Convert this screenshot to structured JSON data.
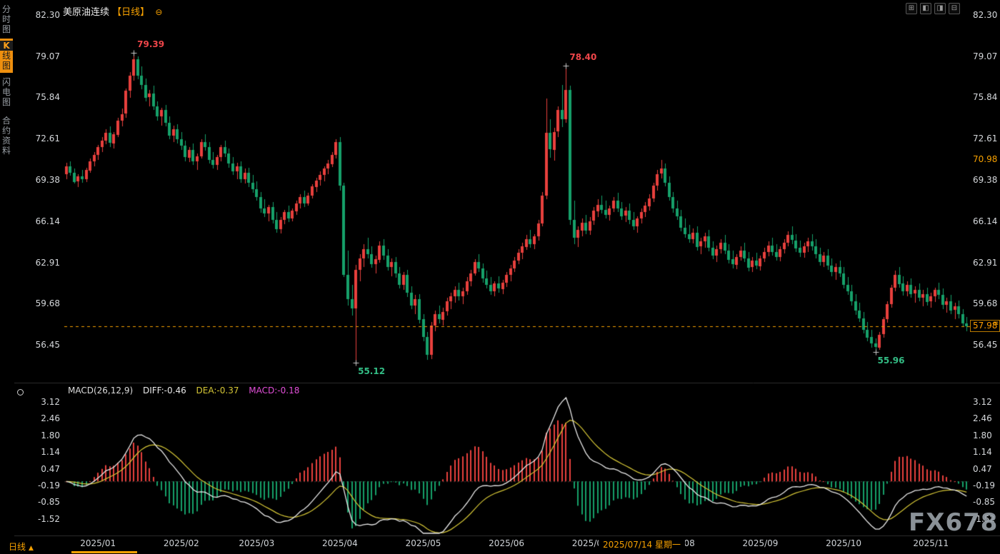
{
  "window": {
    "title": "美原油连续",
    "timeframe_tag": "【日线】",
    "settings_glyph": "⊖",
    "toolbar_icons": [
      {
        "name": "layout-grid-icon",
        "glyph": "⊞"
      },
      {
        "name": "layout-left-icon",
        "glyph": "◧"
      },
      {
        "name": "layout-right-icon",
        "glyph": "◨"
      },
      {
        "name": "layout-stack-icon",
        "glyph": "⊟"
      }
    ]
  },
  "sidebar": {
    "tabs": [
      {
        "label": "分时图",
        "active": false
      },
      {
        "label": "K线图",
        "active": true
      },
      {
        "label": "闪电图",
        "active": false
      },
      {
        "label": "合约资料",
        "active": false
      }
    ]
  },
  "indicator_panel": {
    "name_label": "MACD(26,12,9)",
    "diff_label": "DIFF:-0.46",
    "dea_label": "DEA:-0.37",
    "macd_label": "MACD:-0.18"
  },
  "bottom_bar": {
    "timeframe_label": "日线",
    "arrow": "▲"
  },
  "watermark": "FX678",
  "icons": {
    "price_tag": "≡"
  },
  "colors": {
    "up": "#e8403d",
    "down": "#16a06a",
    "accent": "#f7a100",
    "diff_line": "#e9e9e9",
    "dea_line": "#d5c636",
    "macd_text": "#e24fd8",
    "axis_text": "#d5d8db"
  },
  "chart_data": {
    "type": "candlestick",
    "symbol": "美原油连续",
    "period": "日线",
    "y_ticks": [
      82.3,
      79.07,
      75.84,
      72.61,
      69.38,
      66.14,
      62.91,
      59.68,
      56.45
    ],
    "current_price": 57.98,
    "current_price_label": "57.98",
    "crosshair": {
      "date": "2025/07/14 星期一",
      "price": 70.98,
      "price_label": "70.98",
      "index": 137
    },
    "months": [
      {
        "label": "2025/01",
        "index": 8
      },
      {
        "label": "2025/02",
        "index": 29
      },
      {
        "label": "2025/03",
        "index": 48
      },
      {
        "label": "2025/04",
        "index": 69
      },
      {
        "label": "2025/05",
        "index": 90
      },
      {
        "label": "2025/06",
        "index": 111
      },
      {
        "label": "2025/07",
        "index": 132
      },
      {
        "label": "2025/08",
        "index": 154
      },
      {
        "label": "2025/09",
        "index": 175
      },
      {
        "label": "2025/10",
        "index": 196
      },
      {
        "label": "2025/11",
        "index": 218
      }
    ],
    "annotations": [
      {
        "text": "79.39",
        "price": 79.39,
        "index": 17,
        "placement": "above",
        "color": "#f0464a"
      },
      {
        "text": "78.40",
        "price": 78.4,
        "index": 126,
        "placement": "above",
        "color": "#f0464a"
      },
      {
        "text": "55.12",
        "price": 55.12,
        "index": 73,
        "placement": "below",
        "color": "#33bd85"
      },
      {
        "text": "55.96",
        "price": 55.96,
        "index": 204,
        "placement": "below",
        "color": "#33bd85"
      }
    ],
    "macd": {
      "params": [
        26,
        12,
        9
      ],
      "diff": -0.46,
      "dea": -0.37,
      "macd": -0.18,
      "y_ticks": [
        3.12,
        2.46,
        1.8,
        1.14,
        0.47,
        -0.19,
        -0.85,
        -1.52
      ]
    },
    "candles": [
      [
        69.9,
        70.8,
        69.5,
        70.5
      ],
      [
        70.5,
        70.9,
        69.8,
        70.0
      ],
      [
        70.0,
        70.3,
        69.1,
        69.3
      ],
      [
        69.3,
        69.9,
        68.9,
        69.7
      ],
      [
        69.7,
        70.2,
        69.2,
        69.5
      ],
      [
        69.5,
        70.4,
        69.3,
        70.2
      ],
      [
        70.2,
        71.1,
        70.0,
        70.9
      ],
      [
        70.9,
        71.6,
        70.5,
        71.4
      ],
      [
        71.4,
        72.2,
        71.0,
        72.0
      ],
      [
        72.0,
        72.8,
        71.6,
        72.5
      ],
      [
        72.5,
        73.4,
        72.2,
        73.1
      ],
      [
        73.1,
        73.6,
        72.0,
        72.3
      ],
      [
        72.3,
        73.2,
        71.9,
        73.0
      ],
      [
        73.0,
        74.3,
        72.8,
        74.1
      ],
      [
        74.1,
        75.0,
        73.6,
        74.6
      ],
      [
        74.6,
        76.6,
        74.3,
        76.4
      ],
      [
        76.4,
        77.9,
        75.9,
        77.6
      ],
      [
        77.6,
        79.39,
        77.2,
        78.9
      ],
      [
        78.9,
        79.1,
        77.3,
        77.6
      ],
      [
        77.6,
        78.3,
        76.5,
        76.9
      ],
      [
        76.9,
        77.4,
        75.6,
        75.9
      ],
      [
        75.9,
        76.5,
        75.2,
        76.2
      ],
      [
        76.2,
        76.8,
        74.9,
        75.2
      ],
      [
        75.2,
        75.6,
        74.1,
        74.4
      ],
      [
        74.4,
        75.1,
        73.7,
        74.9
      ],
      [
        74.9,
        75.3,
        73.6,
        73.9
      ],
      [
        73.9,
        74.4,
        72.6,
        72.9
      ],
      [
        72.9,
        73.7,
        72.4,
        73.4
      ],
      [
        73.4,
        73.8,
        72.3,
        72.6
      ],
      [
        72.6,
        73.2,
        71.8,
        72.1
      ],
      [
        72.1,
        72.5,
        70.9,
        71.2
      ],
      [
        71.2,
        72.0,
        70.8,
        71.8
      ],
      [
        71.8,
        72.3,
        70.6,
        70.9
      ],
      [
        70.9,
        71.5,
        70.2,
        71.3
      ],
      [
        71.3,
        72.6,
        71.1,
        72.4
      ],
      [
        72.4,
        73.0,
        71.7,
        72.0
      ],
      [
        72.0,
        72.4,
        70.7,
        71.0
      ],
      [
        71.0,
        71.6,
        70.3,
        70.6
      ],
      [
        70.6,
        71.4,
        70.2,
        71.2
      ],
      [
        71.2,
        72.2,
        70.9,
        72.0
      ],
      [
        72.0,
        72.5,
        71.2,
        71.5
      ],
      [
        71.5,
        71.9,
        70.4,
        70.7
      ],
      [
        70.7,
        71.2,
        69.8,
        70.1
      ],
      [
        70.1,
        70.8,
        69.5,
        70.5
      ],
      [
        70.5,
        70.9,
        69.2,
        69.5
      ],
      [
        69.5,
        70.3,
        69.1,
        70.0
      ],
      [
        70.0,
        70.4,
        68.9,
        69.2
      ],
      [
        69.2,
        69.8,
        68.4,
        68.7
      ],
      [
        68.7,
        69.3,
        67.8,
        68.1
      ],
      [
        68.1,
        68.5,
        66.9,
        67.2
      ],
      [
        67.2,
        67.9,
        66.5,
        66.8
      ],
      [
        66.8,
        67.5,
        66.2,
        67.3
      ],
      [
        67.3,
        67.7,
        66.0,
        66.3
      ],
      [
        66.3,
        66.9,
        65.3,
        65.6
      ],
      [
        65.6,
        66.5,
        65.2,
        66.3
      ],
      [
        66.3,
        67.1,
        66.0,
        66.9
      ],
      [
        66.9,
        67.4,
        66.1,
        66.4
      ],
      [
        66.4,
        67.2,
        66.2,
        67.0
      ],
      [
        67.0,
        67.8,
        66.7,
        67.6
      ],
      [
        67.6,
        68.3,
        67.2,
        68.1
      ],
      [
        68.1,
        68.6,
        67.3,
        67.6
      ],
      [
        67.6,
        68.4,
        67.4,
        68.2
      ],
      [
        68.2,
        69.1,
        68.0,
        68.9
      ],
      [
        68.9,
        69.6,
        68.5,
        69.4
      ],
      [
        69.4,
        70.1,
        69.0,
        69.8
      ],
      [
        69.8,
        70.5,
        69.3,
        70.3
      ],
      [
        70.3,
        71.0,
        69.9,
        70.7
      ],
      [
        70.7,
        71.6,
        70.4,
        71.4
      ],
      [
        71.4,
        72.6,
        71.1,
        72.4
      ],
      [
        72.4,
        72.8,
        68.6,
        69.0
      ],
      [
        69.0,
        69.2,
        61.8,
        62.0
      ],
      [
        62.0,
        63.9,
        59.6,
        60.1
      ],
      [
        60.1,
        61.2,
        58.8,
        59.4
      ],
      [
        59.4,
        62.8,
        55.12,
        62.4
      ],
      [
        62.4,
        63.6,
        61.5,
        63.3
      ],
      [
        63.3,
        64.4,
        62.6,
        64.0
      ],
      [
        64.0,
        64.9,
        63.3,
        63.6
      ],
      [
        63.6,
        64.2,
        62.5,
        62.8
      ],
      [
        62.8,
        63.5,
        62.1,
        63.2
      ],
      [
        63.2,
        64.6,
        62.9,
        64.3
      ],
      [
        64.3,
        64.8,
        63.2,
        63.5
      ],
      [
        63.5,
        64.0,
        62.3,
        62.6
      ],
      [
        62.6,
        63.3,
        61.9,
        63.0
      ],
      [
        63.0,
        63.4,
        61.8,
        62.1
      ],
      [
        62.1,
        62.6,
        60.9,
        61.2
      ],
      [
        61.2,
        62.2,
        60.8,
        62.0
      ],
      [
        62.0,
        62.4,
        60.3,
        60.6
      ],
      [
        60.6,
        61.1,
        59.3,
        59.6
      ],
      [
        59.6,
        60.4,
        58.9,
        60.1
      ],
      [
        60.1,
        60.5,
        58.2,
        58.5
      ],
      [
        58.5,
        58.9,
        56.8,
        57.1
      ],
      [
        57.1,
        57.5,
        55.3,
        55.7
      ],
      [
        55.7,
        58.3,
        55.4,
        58.0
      ],
      [
        58.0,
        59.2,
        57.6,
        58.9
      ],
      [
        58.9,
        59.6,
        58.2,
        58.5
      ],
      [
        58.5,
        59.4,
        58.0,
        59.1
      ],
      [
        59.1,
        60.2,
        58.8,
        59.9
      ],
      [
        59.9,
        60.6,
        59.3,
        60.3
      ],
      [
        60.3,
        61.1,
        59.8,
        60.8
      ],
      [
        60.8,
        61.4,
        60.0,
        60.3
      ],
      [
        60.3,
        61.0,
        59.7,
        60.7
      ],
      [
        60.7,
        61.8,
        60.4,
        61.5
      ],
      [
        61.5,
        62.4,
        61.1,
        62.1
      ],
      [
        62.1,
        63.2,
        61.9,
        63.0
      ],
      [
        63.0,
        63.6,
        62.2,
        62.5
      ],
      [
        62.5,
        62.9,
        61.4,
        61.7
      ],
      [
        61.7,
        62.3,
        60.9,
        61.2
      ],
      [
        61.2,
        61.8,
        60.4,
        60.7
      ],
      [
        60.7,
        61.5,
        60.3,
        61.3
      ],
      [
        61.3,
        61.9,
        60.6,
        60.9
      ],
      [
        60.9,
        61.6,
        60.5,
        61.4
      ],
      [
        61.4,
        62.2,
        61.0,
        62.0
      ],
      [
        62.0,
        62.8,
        61.5,
        62.5
      ],
      [
        62.5,
        63.4,
        62.2,
        63.1
      ],
      [
        63.1,
        64.0,
        62.8,
        63.7
      ],
      [
        63.7,
        64.5,
        63.2,
        64.2
      ],
      [
        64.2,
        65.1,
        63.9,
        64.8
      ],
      [
        64.8,
        65.5,
        64.1,
        64.4
      ],
      [
        64.4,
        65.2,
        64.0,
        65.0
      ],
      [
        65.0,
        66.3,
        64.7,
        66.0
      ],
      [
        66.0,
        68.5,
        65.8,
        68.2
      ],
      [
        68.2,
        75.8,
        67.9,
        73.1
      ],
      [
        73.1,
        74.2,
        71.2,
        71.8
      ],
      [
        71.8,
        73.5,
        70.9,
        73.2
      ],
      [
        73.2,
        75.2,
        72.8,
        74.9
      ],
      [
        74.9,
        76.9,
        73.6,
        74.2
      ],
      [
        74.2,
        78.4,
        73.9,
        76.5
      ],
      [
        76.5,
        76.8,
        65.9,
        66.3
      ],
      [
        66.3,
        67.8,
        64.4,
        64.9
      ],
      [
        64.9,
        65.8,
        64.2,
        65.5
      ],
      [
        65.5,
        66.4,
        65.0,
        66.1
      ],
      [
        66.1,
        66.7,
        65.2,
        65.5
      ],
      [
        65.5,
        66.5,
        65.1,
        66.2
      ],
      [
        66.2,
        67.3,
        65.9,
        67.0
      ],
      [
        67.0,
        67.9,
        66.5,
        67.5
      ],
      [
        67.5,
        68.2,
        66.8,
        67.1
      ],
      [
        67.1,
        67.8,
        66.4,
        66.7
      ],
      [
        66.7,
        67.4,
        66.2,
        67.2
      ],
      [
        67.2,
        68.1,
        66.9,
        67.8
      ],
      [
        67.8,
        68.4,
        66.9,
        67.2
      ],
      [
        67.2,
        67.7,
        66.3,
        66.6
      ],
      [
        66.6,
        67.3,
        66.1,
        67.0
      ],
      [
        67.0,
        67.6,
        66.0,
        66.3
      ],
      [
        66.3,
        66.9,
        65.5,
        65.8
      ],
      [
        65.8,
        66.6,
        65.3,
        66.4
      ],
      [
        66.4,
        67.2,
        66.0,
        66.9
      ],
      [
        66.9,
        67.7,
        66.5,
        67.4
      ],
      [
        67.4,
        68.3,
        67.0,
        68.0
      ],
      [
        68.0,
        69.2,
        67.7,
        69.0
      ],
      [
        69.0,
        70.2,
        68.6,
        69.9
      ],
      [
        69.9,
        70.98,
        69.5,
        70.3
      ],
      [
        70.3,
        70.7,
        68.9,
        69.2
      ],
      [
        69.2,
        69.7,
        67.8,
        68.1
      ],
      [
        68.1,
        68.5,
        66.9,
        67.2
      ],
      [
        67.2,
        67.8,
        66.3,
        66.6
      ],
      [
        66.6,
        67.1,
        65.4,
        65.7
      ],
      [
        65.7,
        66.4,
        64.9,
        65.2
      ],
      [
        65.2,
        65.9,
        64.5,
        64.8
      ],
      [
        64.8,
        65.6,
        64.4,
        65.3
      ],
      [
        65.3,
        65.8,
        63.9,
        64.2
      ],
      [
        64.2,
        64.9,
        63.6,
        64.6
      ],
      [
        64.6,
        65.3,
        64.1,
        65.0
      ],
      [
        65.0,
        65.5,
        63.8,
        64.1
      ],
      [
        64.1,
        64.6,
        63.2,
        63.5
      ],
      [
        63.5,
        64.3,
        63.0,
        64.0
      ],
      [
        64.0,
        64.8,
        63.7,
        64.5
      ],
      [
        64.5,
        65.1,
        63.6,
        63.9
      ],
      [
        63.9,
        64.4,
        62.9,
        63.2
      ],
      [
        63.2,
        63.9,
        62.5,
        62.8
      ],
      [
        62.8,
        63.6,
        62.4,
        63.4
      ],
      [
        63.4,
        64.2,
        63.1,
        63.9
      ],
      [
        63.9,
        64.5,
        63.0,
        63.3
      ],
      [
        63.3,
        63.8,
        62.3,
        62.6
      ],
      [
        62.6,
        63.4,
        62.2,
        63.1
      ],
      [
        63.1,
        63.7,
        62.4,
        62.7
      ],
      [
        62.7,
        63.5,
        62.3,
        63.3
      ],
      [
        63.3,
        64.1,
        63.0,
        63.8
      ],
      [
        63.8,
        64.6,
        63.4,
        64.3
      ],
      [
        64.3,
        64.9,
        63.5,
        63.8
      ],
      [
        63.8,
        64.4,
        63.1,
        63.4
      ],
      [
        63.4,
        64.2,
        63.0,
        64.0
      ],
      [
        64.0,
        64.8,
        63.7,
        64.5
      ],
      [
        64.5,
        65.4,
        64.2,
        65.1
      ],
      [
        65.1,
        65.8,
        64.4,
        64.7
      ],
      [
        64.7,
        65.2,
        63.8,
        64.1
      ],
      [
        64.1,
        64.7,
        63.4,
        63.7
      ],
      [
        63.7,
        64.5,
        63.3,
        64.2
      ],
      [
        64.2,
        64.9,
        63.8,
        64.6
      ],
      [
        64.6,
        65.2,
        63.9,
        64.2
      ],
      [
        64.2,
        64.8,
        63.3,
        63.6
      ],
      [
        63.6,
        64.1,
        62.7,
        63.0
      ],
      [
        63.0,
        63.8,
        62.6,
        63.5
      ],
      [
        63.5,
        64.0,
        62.4,
        62.7
      ],
      [
        62.7,
        63.3,
        61.9,
        62.2
      ],
      [
        62.2,
        62.9,
        61.6,
        62.6
      ],
      [
        62.6,
        63.1,
        61.8,
        62.1
      ],
      [
        62.1,
        62.6,
        60.9,
        61.2
      ],
      [
        61.2,
        61.8,
        60.4,
        60.7
      ],
      [
        60.7,
        61.2,
        59.6,
        59.9
      ],
      [
        59.9,
        60.5,
        58.9,
        59.2
      ],
      [
        59.2,
        59.8,
        58.3,
        58.6
      ],
      [
        58.6,
        59.1,
        57.4,
        57.7
      ],
      [
        57.7,
        58.3,
        56.8,
        57.1
      ],
      [
        57.1,
        57.7,
        56.3,
        56.6
      ],
      [
        56.6,
        57.0,
        55.96,
        56.3
      ],
      [
        56.3,
        57.5,
        56.1,
        57.3
      ],
      [
        57.3,
        58.7,
        57.1,
        58.5
      ],
      [
        58.5,
        59.9,
        58.2,
        59.7
      ],
      [
        59.7,
        61.2,
        59.4,
        61.0
      ],
      [
        61.0,
        62.3,
        60.7,
        62.0
      ],
      [
        62.0,
        62.6,
        61.0,
        61.3
      ],
      [
        61.3,
        61.9,
        60.4,
        60.7
      ],
      [
        60.7,
        61.5,
        60.3,
        61.2
      ],
      [
        61.2,
        61.7,
        60.2,
        60.5
      ],
      [
        60.5,
        61.1,
        59.8,
        60.8
      ],
      [
        60.8,
        61.3,
        59.9,
        60.2
      ],
      [
        60.2,
        60.8,
        59.5,
        60.5
      ],
      [
        60.5,
        61.0,
        59.6,
        59.9
      ],
      [
        59.9,
        60.6,
        59.4,
        60.3
      ],
      [
        60.3,
        61.0,
        59.9,
        60.8
      ],
      [
        60.8,
        61.4,
        60.1,
        60.4
      ],
      [
        60.4,
        60.9,
        59.3,
        59.6
      ],
      [
        59.6,
        60.2,
        59.0,
        59.9
      ],
      [
        59.9,
        60.4,
        58.9,
        59.2
      ],
      [
        59.2,
        59.8,
        58.5,
        59.5
      ],
      [
        59.5,
        60.0,
        58.6,
        58.9
      ],
      [
        58.9,
        59.3,
        57.9,
        58.2
      ],
      [
        58.2,
        58.7,
        57.6,
        57.98
      ]
    ]
  }
}
